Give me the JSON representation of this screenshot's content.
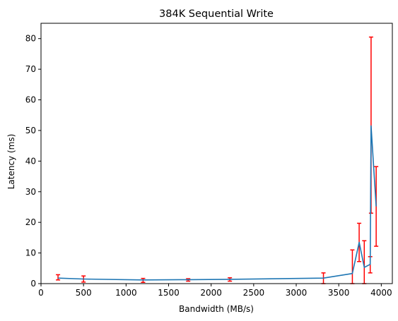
{
  "chart_data": {
    "type": "line",
    "title": "384K  Sequential Write",
    "xlabel": "Bandwidth (MB/s)",
    "ylabel": "Latency (ms)",
    "xlim": [
      0,
      4130
    ],
    "ylim": [
      0,
      85
    ],
    "xticks": [
      0,
      500,
      1000,
      1500,
      2000,
      2500,
      3000,
      3500,
      4000
    ],
    "yticks": [
      0,
      10,
      20,
      30,
      40,
      50,
      60,
      70,
      80
    ],
    "grid": false,
    "legend": "none",
    "line_color": "#1f77b4",
    "errorbar_color": "#ff0000",
    "series": [
      {
        "x": [
          200,
          500,
          1200,
          1730,
          2220,
          3320,
          3660,
          3740,
          3800,
          3870,
          3880,
          3940
        ],
        "y": [
          1.8,
          1.5,
          1.2,
          1.3,
          1.4,
          1.8,
          3.3,
          13.5,
          5.3,
          6.3,
          51.5,
          25.2
        ],
        "err_low": [
          0.6,
          1.0,
          0.8,
          0.5,
          0.6,
          1.8,
          3.3,
          6.3,
          5.3,
          2.8,
          28.5,
          13.0
        ],
        "err_high": [
          1.1,
          1.0,
          0.5,
          0.3,
          0.5,
          1.7,
          7.7,
          6.2,
          8.7,
          2.5,
          29.0,
          13.0
        ]
      }
    ]
  }
}
